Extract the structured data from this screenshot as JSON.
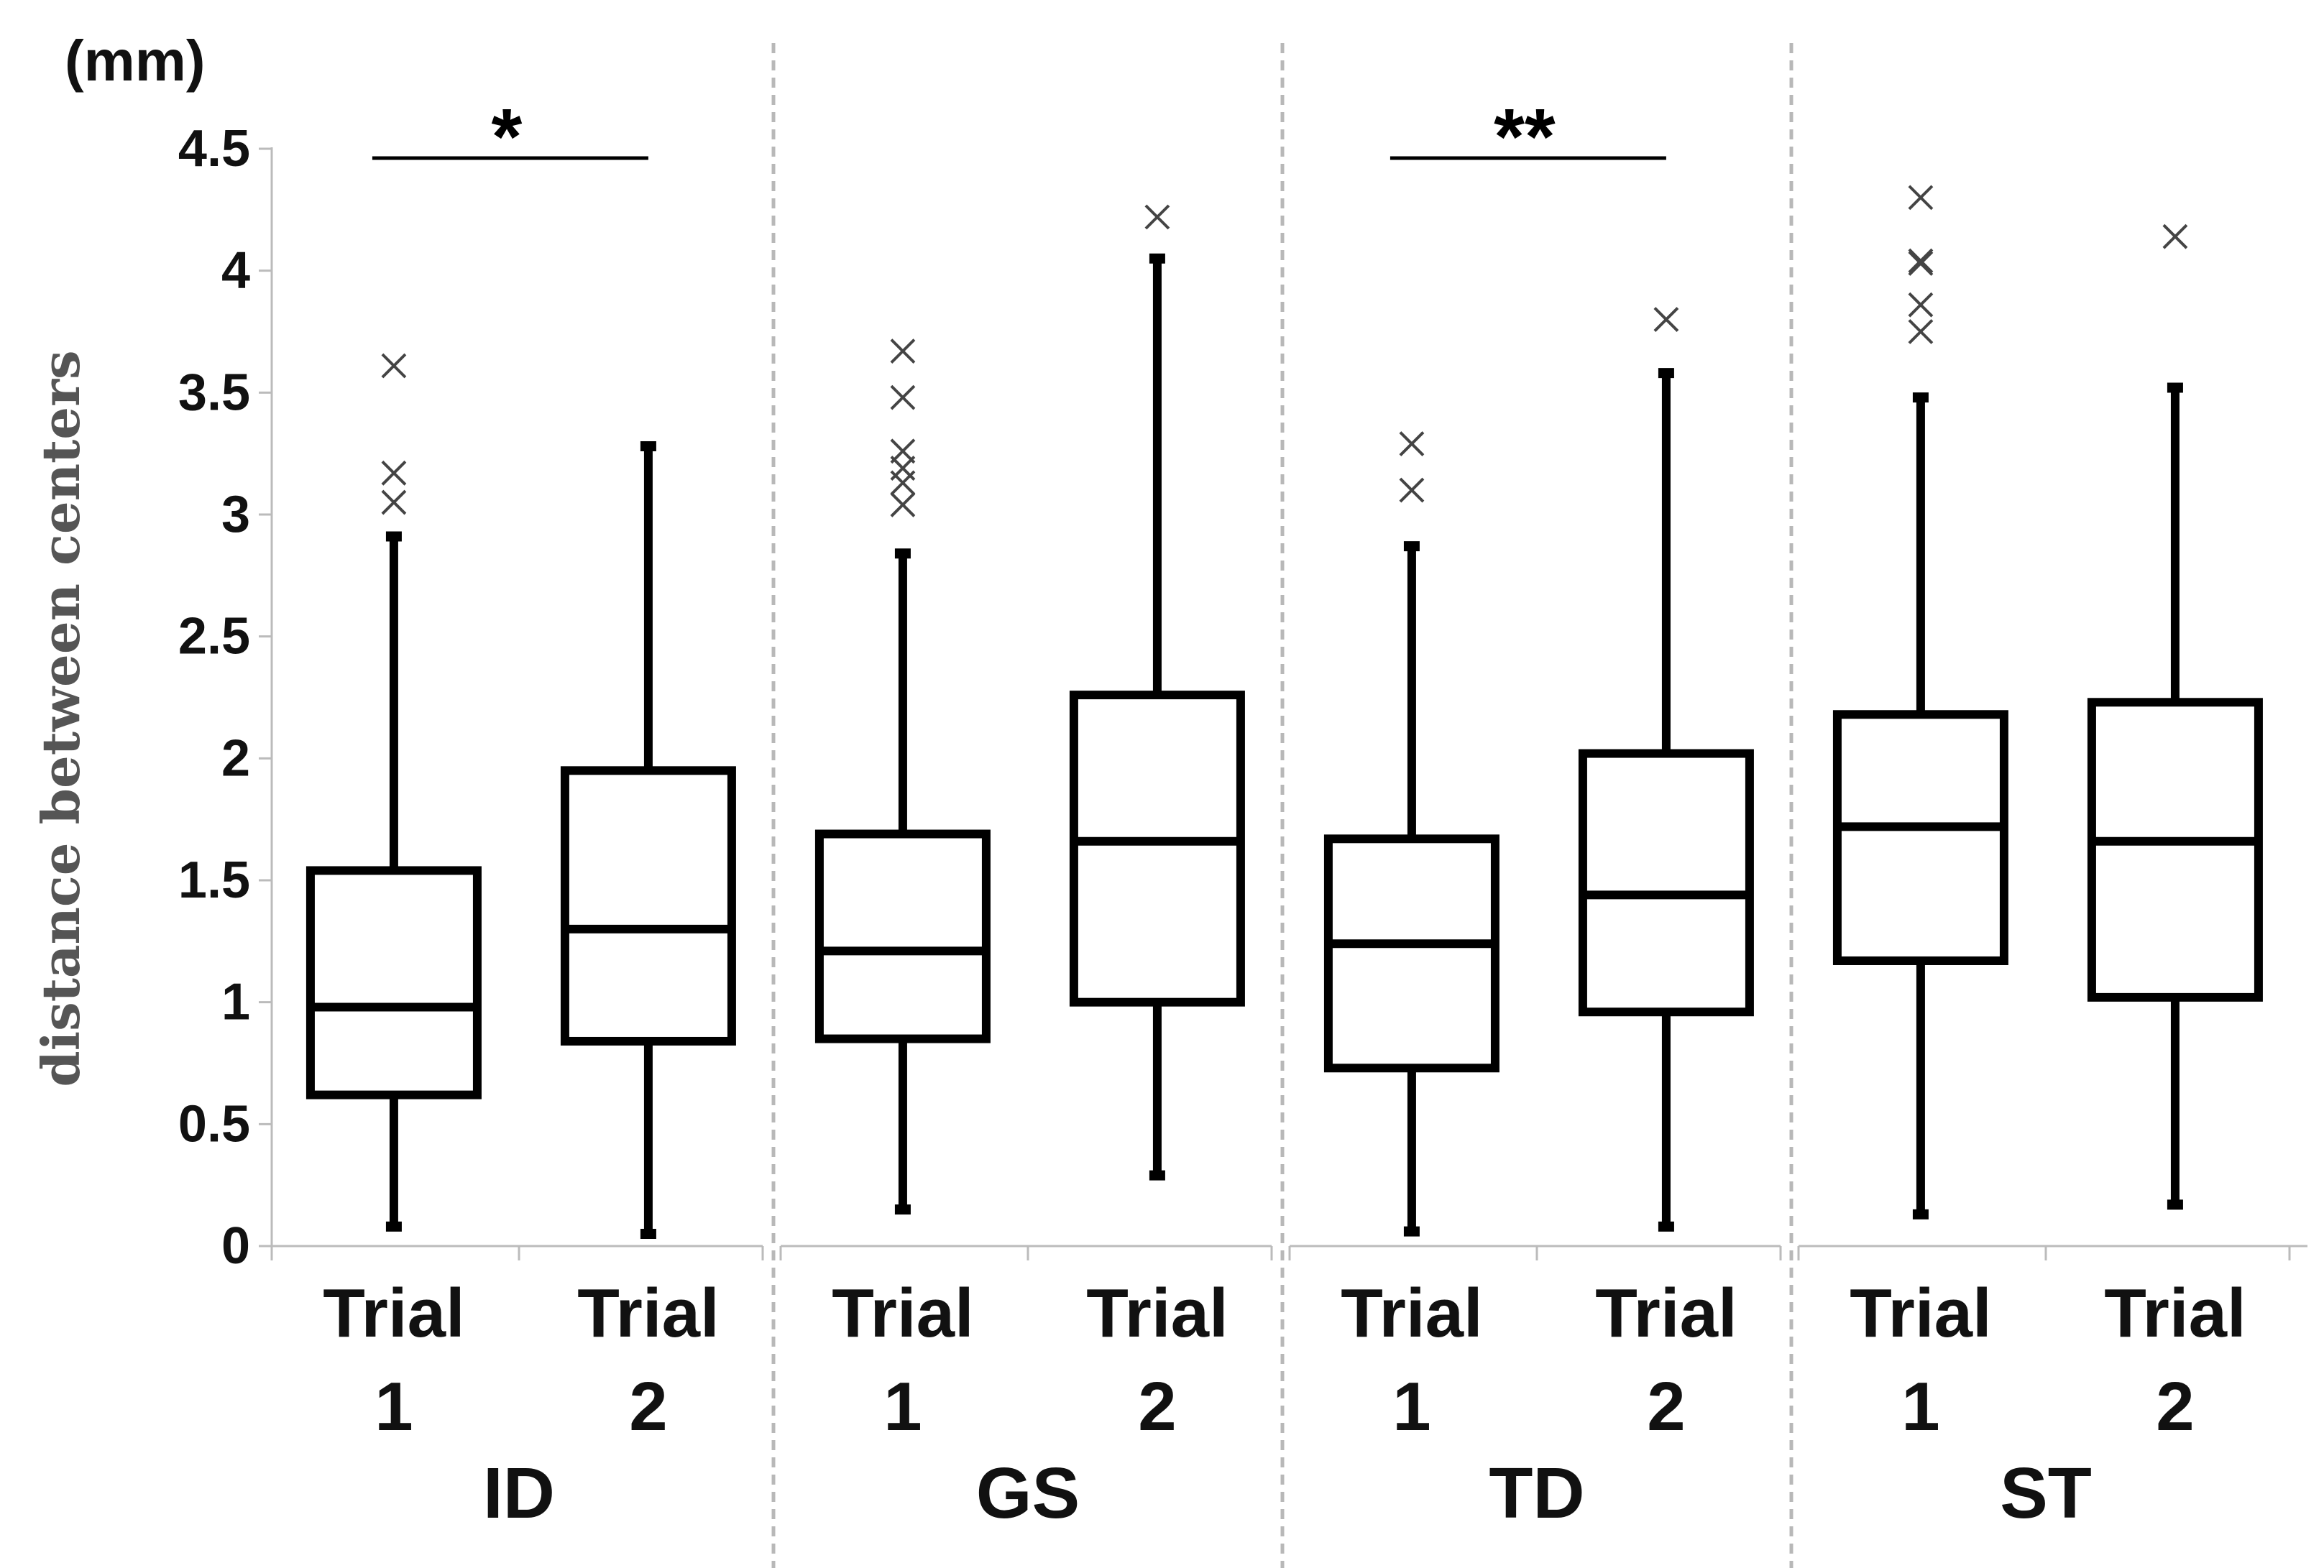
{
  "chart_data": {
    "type": "box",
    "unit_label": "(mm)",
    "ylabel": "distance between centers",
    "ylim": [
      0,
      4.5
    ],
    "yticks": [
      "0",
      "0.5",
      "1",
      "1.5",
      "2",
      "2.5",
      "3",
      "3.5",
      "4",
      "4.5"
    ],
    "ytick_values": [
      0,
      0.5,
      1,
      1.5,
      2,
      2.5,
      3,
      3.5,
      4,
      4.5
    ],
    "groups": [
      {
        "name": "ID",
        "significance": "*",
        "boxes": [
          {
            "line1": "Trial",
            "line2": "1",
            "min": 0.08,
            "q1": 0.62,
            "median": 0.98,
            "q3": 1.54,
            "max": 2.91,
            "outliers": [
              3.05,
              3.17,
              3.61
            ]
          },
          {
            "line1": "Trial",
            "line2": "2",
            "min": 0.05,
            "q1": 0.84,
            "median": 1.3,
            "q3": 1.95,
            "max": 3.28,
            "outliers": []
          }
        ]
      },
      {
        "name": "GS",
        "significance": "",
        "boxes": [
          {
            "line1": "Trial",
            "line2": "1",
            "min": 0.15,
            "q1": 0.85,
            "median": 1.21,
            "q3": 1.69,
            "max": 2.84,
            "outliers": [
              3.04,
              3.13,
              3.19,
              3.26,
              3.48,
              3.67
            ]
          },
          {
            "line1": "Trial",
            "line2": "2",
            "min": 0.29,
            "q1": 1.0,
            "median": 1.66,
            "q3": 2.26,
            "max": 4.05,
            "outliers": [
              4.22
            ]
          }
        ]
      },
      {
        "name": "TD",
        "significance": "**",
        "boxes": [
          {
            "line1": "Trial",
            "line2": "1",
            "min": 0.06,
            "q1": 0.73,
            "median": 1.24,
            "q3": 1.67,
            "max": 2.87,
            "outliers": [
              3.1,
              3.29
            ]
          },
          {
            "line1": "Trial",
            "line2": "2",
            "min": 0.08,
            "q1": 0.96,
            "median": 1.44,
            "q3": 2.02,
            "max": 3.58,
            "outliers": [
              3.8
            ]
          }
        ]
      },
      {
        "name": "ST",
        "significance": "",
        "boxes": [
          {
            "line1": "Trial",
            "line2": "1",
            "min": 0.13,
            "q1": 1.17,
            "median": 1.72,
            "q3": 2.18,
            "max": 3.48,
            "outliers": [
              3.75,
              3.86,
              4.03,
              4.04,
              4.3
            ]
          },
          {
            "line1": "Trial",
            "line2": "2",
            "min": 0.17,
            "q1": 1.02,
            "median": 1.66,
            "q3": 2.23,
            "max": 3.52,
            "outliers": [
              4.14
            ]
          }
        ]
      }
    ]
  }
}
